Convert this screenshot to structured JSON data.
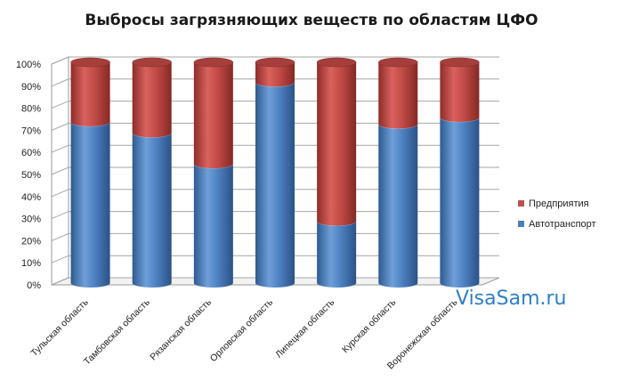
{
  "chart_data": {
    "type": "bar",
    "stacked": true,
    "percent_stacked": true,
    "style": "3d-cylinder",
    "title": "Выбросы загрязняющих веществ по областям ЦФО",
    "categories": [
      "Тульская область",
      "Тамбовская область",
      "Рязанская область",
      "Орловская область",
      "Липецкая область",
      "Курская область",
      "Воронежская область"
    ],
    "series": [
      {
        "name": "Автотранспорт",
        "color": "#4a7ebb",
        "values": [
          73,
          68,
          54,
          91,
          28,
          72,
          75
        ]
      },
      {
        "name": "Предприятия",
        "color": "#c0504d",
        "values": [
          27,
          32,
          46,
          9,
          72,
          28,
          25
        ]
      }
    ],
    "yticks": [
      "0%",
      "10%",
      "20%",
      "30%",
      "40%",
      "50%",
      "60%",
      "70%",
      "80%",
      "90%",
      "100%"
    ],
    "ylim": [
      0,
      100
    ],
    "grid": true,
    "legend_position": "right"
  },
  "watermark": "VisaSam.ru"
}
